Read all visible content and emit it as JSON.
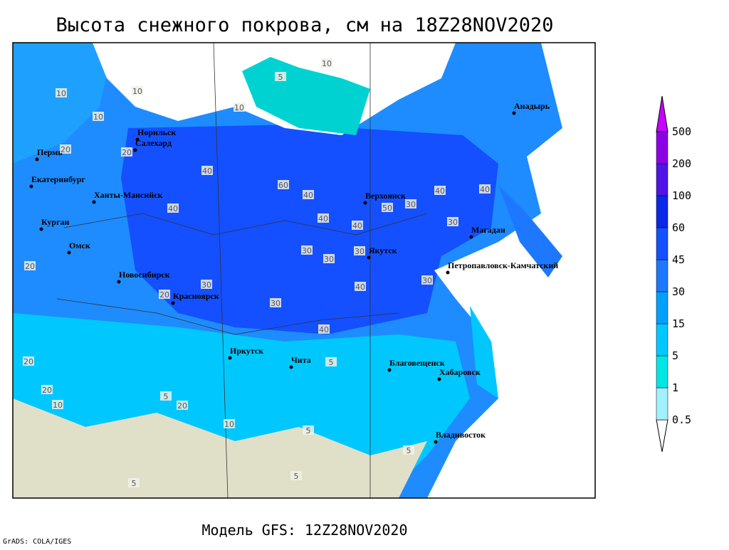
{
  "title": "Высота снежного покрова, см на 18Z28NOV2020",
  "footer": "Модель GFS: 12Z28NOV2020",
  "credit": "GrADS: COLA/IGES",
  "cities": [
    "Норильск",
    "Салехард",
    "Пермь",
    "Екатеринбург",
    "Ханты-Мансийск",
    "Курган",
    "Омск",
    "Новосибирск",
    "Красноярск",
    "Иркутск",
    "Чита",
    "Благовещенск",
    "Хабаровск",
    "Владивосток",
    "Якутск",
    "Верхоянск",
    "Магадан",
    "Петропавловск-Камчатский",
    "Анадырь"
  ],
  "contour_labels": [
    "10",
    "10",
    "10",
    "5",
    "10",
    "10",
    "20",
    "20",
    "20",
    "40",
    "40",
    "40",
    "60",
    "40",
    "30",
    "30",
    "40",
    "50",
    "30",
    "40",
    "40",
    "30",
    "30",
    "30",
    "30",
    "40",
    "40",
    "30",
    "20",
    "20",
    "20",
    "10",
    "5",
    "5",
    "5",
    "5",
    "5",
    "20",
    "10",
    "5"
  ],
  "colorbar": {
    "levels": [
      0.5,
      1,
      5,
      15,
      30,
      45,
      60,
      100,
      200,
      500
    ],
    "colors": [
      "#ffffff",
      "#a0f0ff",
      "#00e6e6",
      "#00c8ff",
      "#00a0ff",
      "#1e78ff",
      "#1450ff",
      "#0a28e6",
      "#5014e6",
      "#8c00e6",
      "#c800ff"
    ]
  }
}
